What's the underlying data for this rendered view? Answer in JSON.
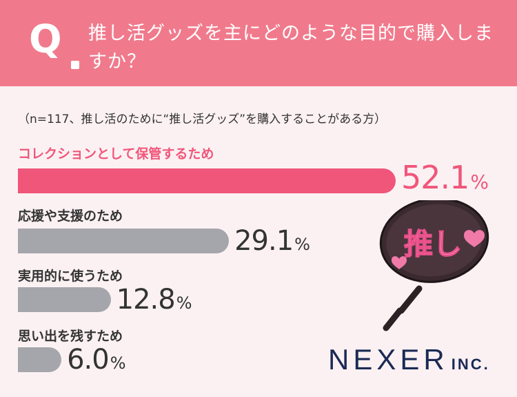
{
  "question": {
    "mark": "Q",
    "text": "推し活グッズを主にどのような目的で購入しますか？"
  },
  "note": "（n=117、推し活のために“推し活グッズ”を購入することがある方）",
  "chart_data": {
    "type": "bar",
    "orientation": "horizontal",
    "title": "推し活グッズを主にどのような目的で購入しますか？",
    "categories": [
      "コレクションとして保管するため",
      "応援や支援のため",
      "実用的に使うため",
      "思い出を残すため"
    ],
    "values": [
      52.1,
      29.1,
      12.8,
      6.0
    ],
    "unit": "%",
    "xlim": [
      0,
      100
    ],
    "grid": false,
    "legend": "none",
    "highlight_color": "#f0567a",
    "bar_color": "#a5a6ab"
  },
  "fan": {
    "text": "推し",
    "icon": "uchiwa-fan-icon"
  },
  "logo": {
    "name": "NEXER",
    "suffix": "INC."
  },
  "colors": {
    "header": "#f07a8c",
    "background": "#fbf1f3",
    "accent": "#f0567a",
    "logo": "#1b2a55"
  }
}
